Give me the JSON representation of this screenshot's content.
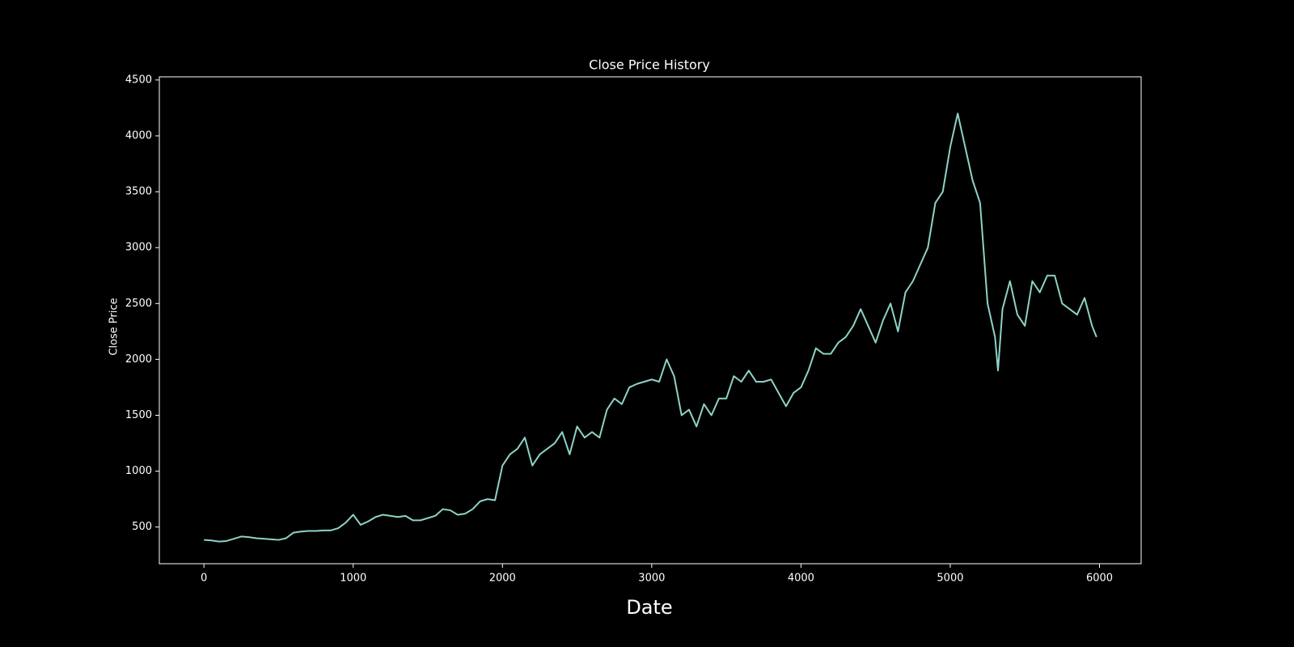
{
  "chart_data": {
    "type": "line",
    "title": "Close Price History",
    "x_label": "Date",
    "y_label": "Close Price",
    "x": [
      0,
      50,
      100,
      150,
      200,
      250,
      300,
      350,
      400,
      450,
      500,
      550,
      600,
      650,
      700,
      750,
      800,
      850,
      900,
      950,
      1000,
      1050,
      1100,
      1150,
      1200,
      1250,
      1300,
      1350,
      1400,
      1450,
      1500,
      1550,
      1600,
      1650,
      1700,
      1750,
      1800,
      1850,
      1900,
      1950,
      2000,
      2050,
      2100,
      2150,
      2200,
      2250,
      2300,
      2350,
      2400,
      2450,
      2500,
      2550,
      2600,
      2650,
      2700,
      2750,
      2800,
      2850,
      2900,
      2950,
      3000,
      3050,
      3100,
      3150,
      3200,
      3250,
      3300,
      3350,
      3400,
      3450,
      3500,
      3550,
      3600,
      3650,
      3700,
      3750,
      3800,
      3850,
      3900,
      3950,
      4000,
      4050,
      4100,
      4150,
      4200,
      4250,
      4300,
      4350,
      4400,
      4450,
      4500,
      4550,
      4600,
      4650,
      4700,
      4750,
      4800,
      4850,
      4900,
      4950,
      5000,
      5050,
      5100,
      5150,
      5200,
      5250,
      5300,
      5320,
      5350,
      5400,
      5450,
      5500,
      5550,
      5600,
      5650,
      5700,
      5750,
      5800,
      5850,
      5900,
      5950,
      5980
    ],
    "values": [
      385,
      380,
      370,
      375,
      395,
      415,
      410,
      400,
      395,
      390,
      385,
      400,
      450,
      460,
      465,
      465,
      470,
      470,
      490,
      540,
      610,
      520,
      550,
      590,
      610,
      600,
      590,
      600,
      560,
      560,
      580,
      600,
      660,
      650,
      610,
      620,
      660,
      730,
      750,
      740,
      1050,
      1150,
      1200,
      1300,
      1050,
      1150,
      1200,
      1250,
      1350,
      1150,
      1400,
      1300,
      1350,
      1300,
      1550,
      1650,
      1600,
      1750,
      1780,
      1800,
      1820,
      1800,
      2000,
      1850,
      1500,
      1550,
      1400,
      1600,
      1500,
      1650,
      1650,
      1850,
      1800,
      1900,
      1800,
      1800,
      1820,
      1700,
      1580,
      1700,
      1750,
      1900,
      2100,
      2050,
      2050,
      2150,
      2200,
      2300,
      2450,
      2300,
      2150,
      2350,
      2500,
      2250,
      2600,
      2700,
      2850,
      3000,
      3400,
      3500,
      3900,
      4200,
      3900,
      3600,
      3400,
      2500,
      2200,
      1900,
      2450,
      2700,
      2400,
      2300,
      2700,
      2600,
      2750,
      2750,
      2500,
      2450,
      2400,
      2550,
      2300,
      2200
    ],
    "color": "#8dd3c7",
    "xlim": [
      -299,
      6279
    ],
    "xticks": [
      0,
      1000,
      2000,
      3000,
      4000,
      5000,
      6000
    ],
    "ylim": [
      172,
      4528
    ],
    "yticks": [
      500,
      1000,
      1500,
      2000,
      2500,
      3000,
      3500,
      4000,
      4500
    ]
  }
}
